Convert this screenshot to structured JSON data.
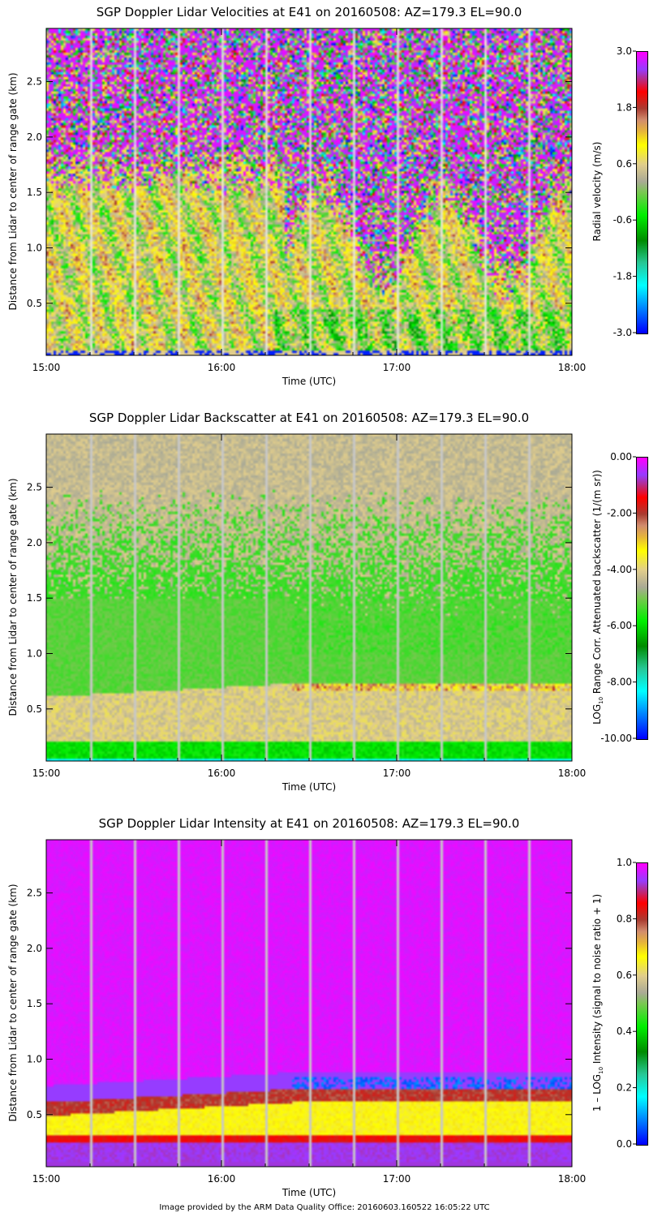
{
  "chart_data": [
    {
      "type": "heatmap",
      "title": "SGP Doppler Lidar Velocities at E41 on 20160508: AZ=179.3 EL=90.0",
      "xlabel": "Time (UTC)",
      "ylabel": "Distance from Lidar to center of range gate (km)",
      "xlim": [
        "15:00",
        "18:00"
      ],
      "xticks": [
        "15:00",
        "16:00",
        "17:00",
        "18:00"
      ],
      "ylim": [
        0.03,
        2.98
      ],
      "yticks": [
        "0.5",
        "1.0",
        "1.5",
        "2.0",
        "2.5"
      ],
      "colorbar": {
        "label": "Radial velocity (m/s)",
        "range": [
          -3.0,
          3.0
        ],
        "ticks": [
          "3.0",
          "1.8",
          "0.6",
          "-0.6",
          "-1.8",
          "-3.0"
        ]
      },
      "field": "velocity",
      "profile": {
        "heights_km": [
          0.1,
          0.5,
          1.0,
          1.5,
          2.0,
          2.5
        ],
        "typical_value": [
          -1.0,
          0.0,
          0.3,
          1.5,
          2.8,
          2.8
        ]
      }
    },
    {
      "type": "heatmap",
      "title": "SGP Doppler Lidar Backscatter at E41 on 20160508: AZ=179.3 EL=90.0",
      "xlabel": "Time (UTC)",
      "ylabel": "Distance from Lidar to center of range gate (km)",
      "xlim": [
        "15:00",
        "18:00"
      ],
      "xticks": [
        "15:00",
        "16:00",
        "17:00",
        "18:00"
      ],
      "ylim": [
        0.03,
        2.98
      ],
      "yticks": [
        "0.5",
        "1.0",
        "1.5",
        "2.0",
        "2.5"
      ],
      "colorbar": {
        "label": "LOG10 Range Corr. Attenuated backscatter (1/(m sr))",
        "label_parts": [
          "LOG",
          "10",
          " Range Corr. Attenuated backscatter (1/(m sr))"
        ],
        "range": [
          -10.0,
          0.0
        ],
        "ticks": [
          "0.00",
          "-2.00",
          "-4.00",
          "-6.00",
          "-8.00",
          "-10.00"
        ]
      },
      "field": "backscatter",
      "profile": {
        "heights_km": [
          0.1,
          0.15,
          0.4,
          0.7,
          1.0,
          2.0,
          2.5
        ],
        "typical_value": [
          -8.5,
          -7.0,
          -5.0,
          -4.5,
          -6.3,
          -6.0,
          -5.5
        ]
      }
    },
    {
      "type": "heatmap",
      "title": "SGP Doppler Lidar Intensity at E41 on 20160508: AZ=179.3 EL=90.0",
      "xlabel": "Time (UTC)",
      "ylabel": "Distance from Lidar to center of range gate (km)",
      "xlim": [
        "15:00",
        "18:00"
      ],
      "xticks": [
        "15:00",
        "16:00",
        "17:00",
        "18:00"
      ],
      "ylim": [
        0.03,
        2.98
      ],
      "yticks": [
        "0.5",
        "1.0",
        "1.5",
        "2.0",
        "2.5"
      ],
      "colorbar": {
        "label": "1 - LOG10 Intensity (signal to noise ratio + 1)",
        "label_parts": [
          "1 – LOG",
          "10",
          " Intensity (signal to noise ratio + 1)"
        ],
        "range": [
          0.0,
          1.0
        ],
        "ticks": [
          "1.0",
          "0.8",
          "0.6",
          "0.4",
          "0.2",
          "0.0"
        ]
      },
      "field": "intensity",
      "profile": {
        "heights_km": [
          0.15,
          0.28,
          0.4,
          0.55,
          0.75,
          1.5
        ],
        "typical_value": [
          0.9,
          0.8,
          0.6,
          0.78,
          0.97,
          0.98
        ]
      }
    }
  ],
  "footer": "Image provided by the ARM Data Quality Office: 20160603.160522 16:05:22 UTC"
}
